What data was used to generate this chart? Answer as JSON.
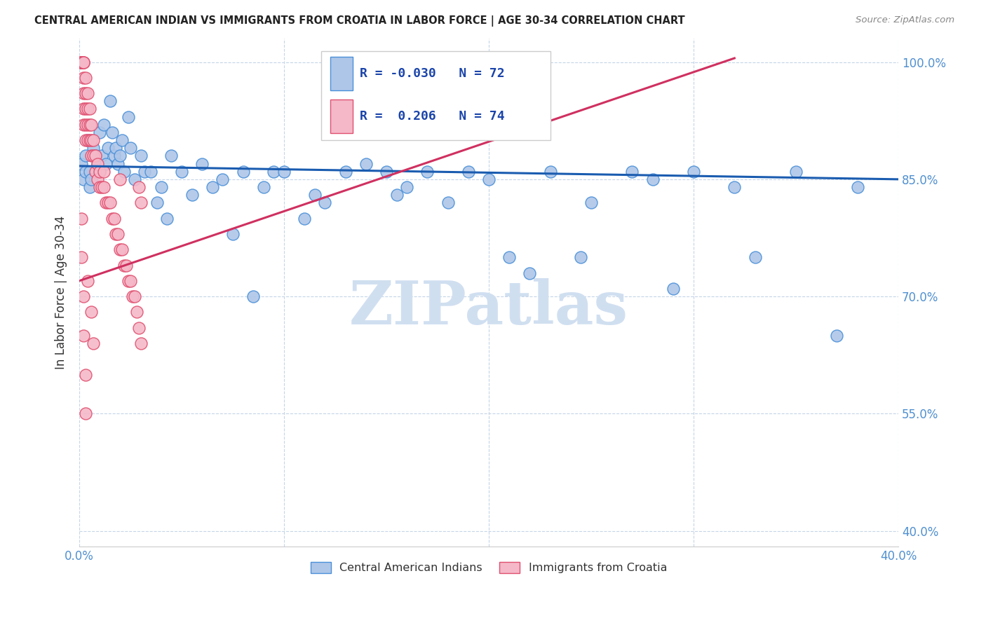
{
  "title": "CENTRAL AMERICAN INDIAN VS IMMIGRANTS FROM CROATIA IN LABOR FORCE | AGE 30-34 CORRELATION CHART",
  "source": "Source: ZipAtlas.com",
  "ylabel": "In Labor Force | Age 30-34",
  "xlim": [
    0.0,
    0.4
  ],
  "ylim": [
    0.38,
    1.03
  ],
  "ytick_vals": [
    0.4,
    0.55,
    0.7,
    0.85,
    1.0
  ],
  "ytick_labels": [
    "40.0%",
    "55.0%",
    "70.0%",
    "85.0%",
    "100.0%"
  ],
  "xtick_vals": [
    0.0,
    0.1,
    0.2,
    0.3,
    0.4
  ],
  "xtick_labels": [
    "0.0%",
    "",
    "",
    "",
    "40.0%"
  ],
  "blue_R": -0.03,
  "blue_N": 72,
  "pink_R": 0.206,
  "pink_N": 74,
  "blue_color": "#aec6e8",
  "pink_color": "#f5b8c8",
  "blue_edge_color": "#4a90d9",
  "pink_edge_color": "#e05070",
  "blue_line_color": "#1a5cb0",
  "pink_line_color": "#d03060",
  "watermark_color": "#d0dff0",
  "blue_scatter_x": [
    0.001,
    0.002,
    0.003,
    0.003,
    0.004,
    0.005,
    0.005,
    0.006,
    0.007,
    0.008,
    0.009,
    0.01,
    0.01,
    0.011,
    0.012,
    0.013,
    0.014,
    0.015,
    0.016,
    0.017,
    0.018,
    0.019,
    0.02,
    0.021,
    0.022,
    0.024,
    0.025,
    0.027,
    0.03,
    0.032,
    0.035,
    0.038,
    0.04,
    0.043,
    0.045,
    0.05,
    0.055,
    0.06,
    0.065,
    0.07,
    0.075,
    0.08,
    0.085,
    0.09,
    0.095,
    0.1,
    0.11,
    0.115,
    0.12,
    0.13,
    0.14,
    0.15,
    0.155,
    0.16,
    0.17,
    0.18,
    0.19,
    0.2,
    0.21,
    0.22,
    0.23,
    0.245,
    0.25,
    0.27,
    0.28,
    0.29,
    0.3,
    0.32,
    0.33,
    0.35,
    0.37,
    0.38
  ],
  "blue_scatter_y": [
    0.87,
    0.85,
    0.86,
    0.88,
    0.9,
    0.84,
    0.86,
    0.85,
    0.89,
    0.88,
    0.87,
    0.91,
    0.86,
    0.88,
    0.92,
    0.87,
    0.89,
    0.95,
    0.91,
    0.88,
    0.89,
    0.87,
    0.88,
    0.9,
    0.86,
    0.93,
    0.89,
    0.85,
    0.88,
    0.86,
    0.86,
    0.82,
    0.84,
    0.8,
    0.88,
    0.86,
    0.83,
    0.87,
    0.84,
    0.85,
    0.78,
    0.86,
    0.7,
    0.84,
    0.86,
    0.86,
    0.8,
    0.83,
    0.82,
    0.86,
    0.87,
    0.86,
    0.83,
    0.84,
    0.86,
    0.82,
    0.86,
    0.85,
    0.75,
    0.73,
    0.86,
    0.75,
    0.82,
    0.86,
    0.85,
    0.71,
    0.86,
    0.84,
    0.75,
    0.86,
    0.65,
    0.84
  ],
  "pink_scatter_x": [
    0.001,
    0.001,
    0.001,
    0.001,
    0.001,
    0.001,
    0.001,
    0.001,
    0.001,
    0.001,
    0.001,
    0.002,
    0.002,
    0.002,
    0.002,
    0.002,
    0.002,
    0.002,
    0.003,
    0.003,
    0.003,
    0.003,
    0.003,
    0.004,
    0.004,
    0.004,
    0.004,
    0.005,
    0.005,
    0.005,
    0.006,
    0.006,
    0.006,
    0.007,
    0.007,
    0.008,
    0.008,
    0.009,
    0.009,
    0.01,
    0.01,
    0.011,
    0.012,
    0.012,
    0.013,
    0.014,
    0.015,
    0.016,
    0.017,
    0.018,
    0.019,
    0.02,
    0.02,
    0.021,
    0.022,
    0.023,
    0.024,
    0.025,
    0.026,
    0.027,
    0.028,
    0.029,
    0.03,
    0.001,
    0.001,
    0.002,
    0.002,
    0.003,
    0.003,
    0.004,
    0.006,
    0.007,
    0.029,
    0.03
  ],
  "pink_scatter_y": [
    1.0,
    1.0,
    1.0,
    1.0,
    1.0,
    1.0,
    1.0,
    1.0,
    1.0,
    1.0,
    1.0,
    1.0,
    1.0,
    1.0,
    0.98,
    0.96,
    0.94,
    0.92,
    0.98,
    0.96,
    0.94,
    0.92,
    0.9,
    0.96,
    0.94,
    0.92,
    0.9,
    0.94,
    0.92,
    0.9,
    0.92,
    0.9,
    0.88,
    0.9,
    0.88,
    0.88,
    0.86,
    0.87,
    0.85,
    0.86,
    0.84,
    0.84,
    0.86,
    0.84,
    0.82,
    0.82,
    0.82,
    0.8,
    0.8,
    0.78,
    0.78,
    0.76,
    0.85,
    0.76,
    0.74,
    0.74,
    0.72,
    0.72,
    0.7,
    0.7,
    0.68,
    0.66,
    0.64,
    0.8,
    0.75,
    0.7,
    0.65,
    0.6,
    0.55,
    0.72,
    0.68,
    0.64,
    0.84,
    0.82
  ],
  "blue_line_x": [
    0.0,
    0.4
  ],
  "blue_line_y": [
    0.867,
    0.85
  ],
  "pink_line_x": [
    0.0,
    0.32
  ],
  "pink_line_y": [
    0.72,
    1.005
  ]
}
